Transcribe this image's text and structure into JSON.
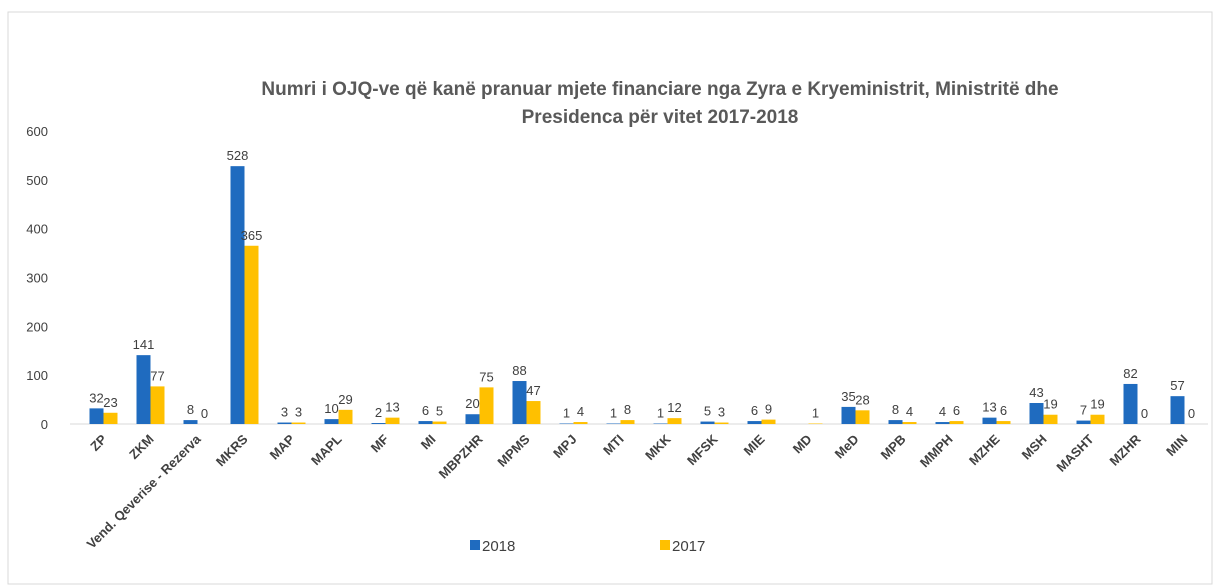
{
  "chart_data": {
    "type": "bar",
    "title": [
      "Numri i OJQ-ve që kanë pranuar mjete financiare nga Zyra e Kryeministrit, Ministritë dhe",
      "Presidenca për vitet 2017-2018"
    ],
    "categories": [
      "ZP",
      "ZKM",
      "Vend. Qeverise - Rezerva",
      "MKRS",
      "MAP",
      "MAPL",
      "MF",
      "MI",
      "MBPZHR",
      "MPMS",
      "MPJ",
      "MTI",
      "MKK",
      "MFSK",
      "MIE",
      "MD",
      "MeD",
      "MPB",
      "MMPH",
      "MZHE",
      "MSH",
      "MASHT",
      "MZHR",
      "MIN"
    ],
    "series": [
      {
        "name": "2018",
        "color": "#1f6bbf",
        "values": [
          32,
          141,
          8,
          528,
          3,
          10,
          2,
          6,
          20,
          88,
          1,
          1,
          1,
          5,
          6,
          null,
          35,
          8,
          4,
          13,
          43,
          7,
          82,
          57
        ]
      },
      {
        "name": "2017",
        "color": "#ffc000",
        "values": [
          23,
          77,
          0,
          365,
          3,
          29,
          13,
          5,
          75,
          47,
          4,
          8,
          12,
          3,
          9,
          1,
          28,
          4,
          6,
          6,
          19,
          19,
          0,
          0
        ]
      }
    ],
    "ylim": [
      0,
      600
    ],
    "yticks": [
      0,
      100,
      200,
      300,
      400,
      500,
      600
    ],
    "grid": false,
    "legend": "bottom"
  }
}
